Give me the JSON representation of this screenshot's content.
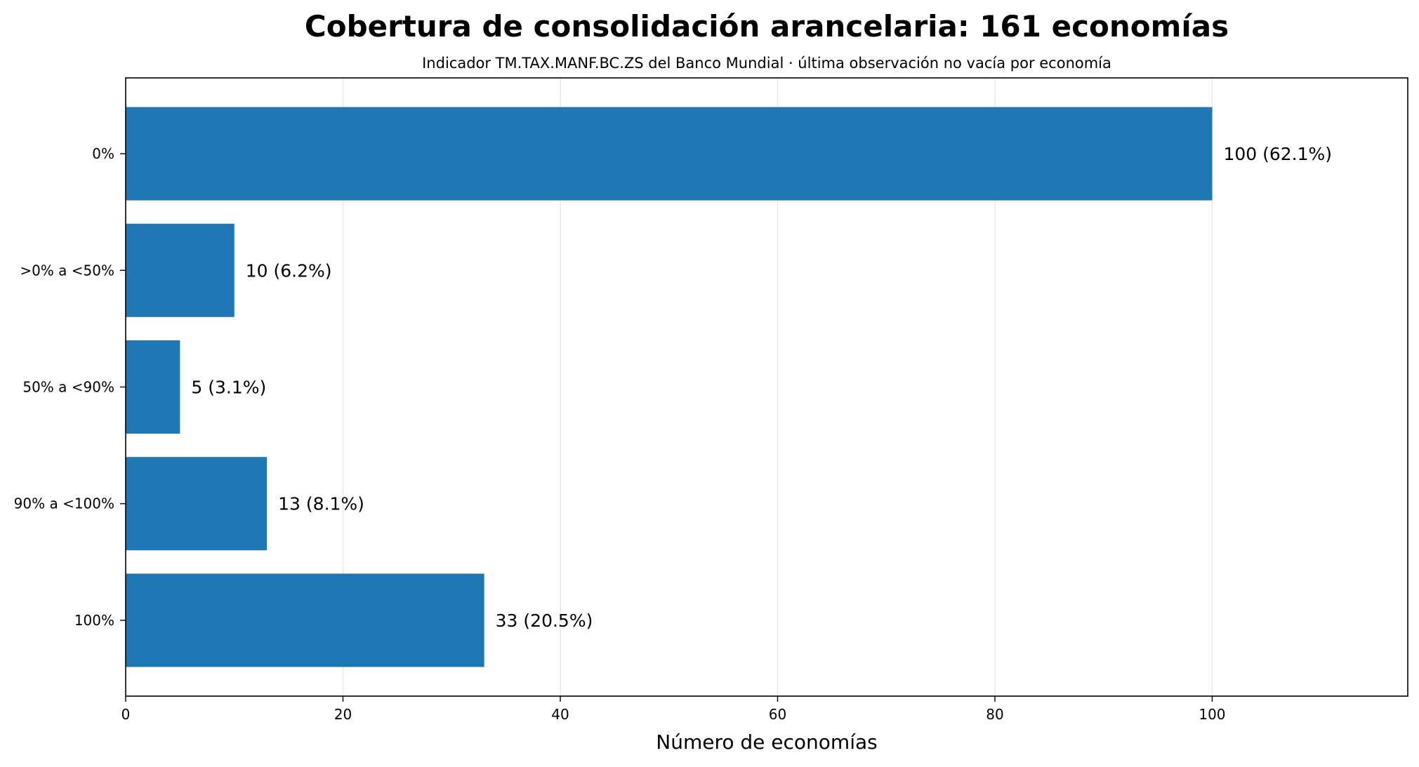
{
  "chart_data": {
    "type": "bar",
    "orientation": "horizontal",
    "title": "Cobertura de consolidación arancelaria: 161 economías",
    "subtitle": "Indicador TM.TAX.MANF.BC.ZS del Banco Mundial · última observación no vacía por economía",
    "xlabel": "Número de economías",
    "ylabel": "",
    "categories": [
      "0%",
      ">0% a <50%",
      "50% a <90%",
      "90% a <100%",
      "100%"
    ],
    "values": [
      100,
      10,
      5,
      13,
      33
    ],
    "data_labels": [
      "100 (62.1%)",
      "10 (6.2%)",
      "5 (3.1%)",
      "13 (8.1%)",
      "33 (20.5%)"
    ],
    "xlim": [
      0,
      118
    ],
    "xticks": [
      0,
      20,
      40,
      60,
      80,
      100
    ],
    "grid": "vertical",
    "legend": "none",
    "bar_color": "#1f77b4"
  }
}
